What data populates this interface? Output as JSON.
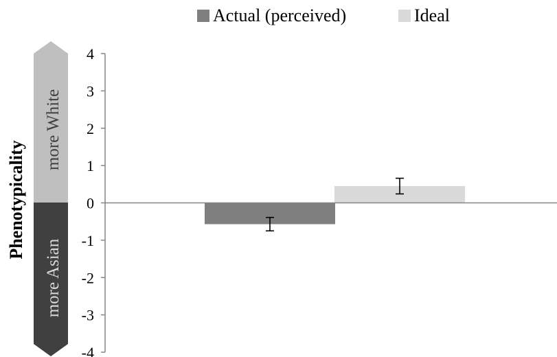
{
  "chart_data": {
    "type": "bar",
    "categories": [
      ""
    ],
    "series": [
      {
        "name": "Actual (perceived)",
        "values": [
          -0.57
        ],
        "error": [
          0.18
        ],
        "color": "#7f7f7f"
      },
      {
        "name": "Ideal",
        "values": [
          0.45
        ],
        "error": [
          0.21
        ],
        "color": "#d9d9d9"
      }
    ],
    "ylabel": "Phenotypicality",
    "ylim": [
      -4,
      4
    ],
    "yticks": [
      4,
      3,
      2,
      1,
      0,
      -1,
      -2,
      -3,
      -4
    ],
    "ytick_labels": [
      "4",
      "3",
      "2",
      "1",
      "0",
      "-1",
      "-2",
      "-3",
      "-4"
    ],
    "legend_position": "top",
    "grid": false,
    "arrow_labels": {
      "upper": "more White",
      "lower": "more Asian"
    },
    "arrow_colors": {
      "upper": "#bfbfbf",
      "lower": "#404040"
    }
  }
}
